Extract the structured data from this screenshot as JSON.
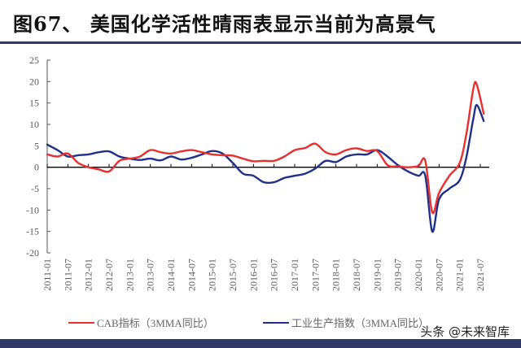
{
  "title": "图67、 美国化学活性晴雨表显示当前为高景气",
  "watermark": "头条 @未来智库",
  "colors": {
    "cab": "#e8302e",
    "ip": "#1f2f8a",
    "rule": "#2f3a6b",
    "axis": "#000000",
    "tick_label": "#595959"
  },
  "chart_data": {
    "type": "line",
    "title": "美国化学活性晴雨表显示当前为高景气",
    "xlabel": "",
    "ylabel": "",
    "ylim": [
      -20,
      25
    ],
    "yticks": [
      25,
      20,
      15,
      10,
      5,
      0,
      -5,
      -10,
      -15,
      -20
    ],
    "xtick_labels": [
      "2011-01",
      "2011-07",
      "2012-01",
      "2012-07",
      "2013-01",
      "2013-07",
      "2014-01",
      "2014-07",
      "2015-01",
      "2015-07",
      "2016-01",
      "2016-07",
      "2017-01",
      "2017-07",
      "2018-01",
      "2018-07",
      "2019-01",
      "2019-07",
      "2020-01",
      "2020-07",
      "2021-01",
      "2021-07"
    ],
    "grid": false,
    "legend_position": "bottom",
    "x": [
      "2011-01",
      "2011-04",
      "2011-07",
      "2011-10",
      "2012-01",
      "2012-04",
      "2012-07",
      "2012-10",
      "2013-01",
      "2013-04",
      "2013-07",
      "2013-10",
      "2014-01",
      "2014-04",
      "2014-07",
      "2014-10",
      "2015-01",
      "2015-04",
      "2015-07",
      "2015-10",
      "2016-01",
      "2016-04",
      "2016-07",
      "2016-10",
      "2017-01",
      "2017-04",
      "2017-07",
      "2017-10",
      "2018-01",
      "2018-04",
      "2018-07",
      "2018-10",
      "2019-01",
      "2019-04",
      "2019-07",
      "2019-10",
      "2020-01",
      "2020-03",
      "2020-05",
      "2020-07",
      "2020-10",
      "2021-01",
      "2021-03",
      "2021-05",
      "2021-06",
      "2021-08"
    ],
    "series": [
      {
        "name": "CAB指标（3MMA同比）",
        "color": "#e8302e",
        "values": [
          3.0,
          2.5,
          3.2,
          1.0,
          0.0,
          -0.5,
          -1.0,
          1.5,
          2.0,
          2.5,
          4.0,
          3.5,
          3.2,
          3.7,
          4.0,
          3.5,
          3.0,
          2.8,
          2.7,
          2.0,
          1.4,
          1.5,
          1.5,
          2.5,
          4.0,
          4.5,
          5.5,
          3.5,
          3.0,
          4.0,
          4.4,
          3.8,
          3.8,
          0.5,
          0.2,
          0.0,
          0.3,
          1.5,
          -10.5,
          -6.0,
          -2.0,
          1.0,
          8.0,
          18.5,
          19.2,
          12.5
        ]
      },
      {
        "name": "工业生产指数（3MMA同比）",
        "color": "#1f2f8a",
        "values": [
          5.3,
          4.0,
          2.5,
          2.8,
          3.0,
          3.5,
          3.7,
          2.5,
          2.0,
          1.7,
          2.0,
          1.6,
          2.5,
          1.8,
          2.2,
          3.0,
          3.8,
          3.2,
          1.0,
          -1.5,
          -2.0,
          -3.5,
          -3.5,
          -2.5,
          -2.0,
          -1.5,
          -0.3,
          1.5,
          1.2,
          2.5,
          3.0,
          3.0,
          4.0,
          2.5,
          0.5,
          -1.0,
          -2.0,
          -2.0,
          -15.0,
          -7.5,
          -5.0,
          -3.0,
          2.5,
          11.5,
          14.5,
          10.8
        ]
      }
    ]
  },
  "legend": [
    {
      "label": "CAB指标（3MMA同比）",
      "color": "#e8302e"
    },
    {
      "label": "工业生产指数（3MMA同比）",
      "color": "#1f2f8a"
    }
  ]
}
